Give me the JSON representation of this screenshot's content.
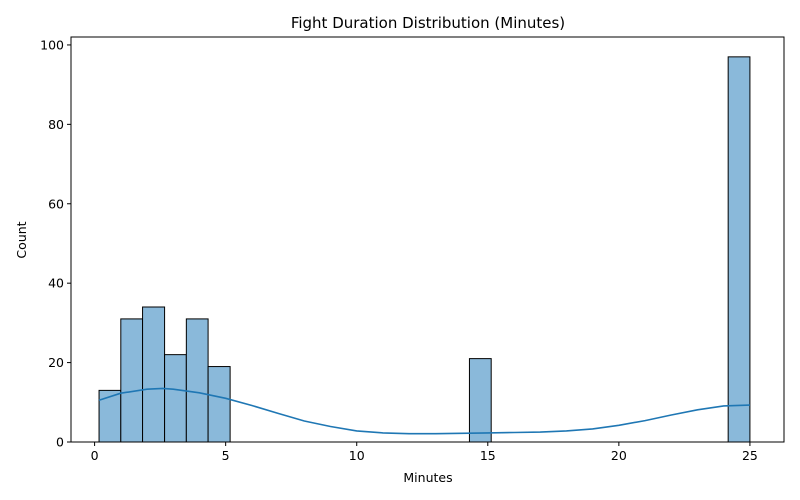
{
  "chart_data": {
    "type": "bar",
    "subtype": "histogram_with_kde",
    "title": "Fight Duration Distribution (Minutes)",
    "xlabel": "Minutes",
    "ylabel": "Count",
    "xlim": [
      -0.9,
      26.3
    ],
    "ylim": [
      0,
      102
    ],
    "xticks": [
      0,
      5,
      10,
      15,
      20,
      25
    ],
    "yticks": [
      0,
      20,
      40,
      60,
      80,
      100
    ],
    "grid": false,
    "legend": "none",
    "colors": {
      "bar_fill": "#8ab9da",
      "bar_edge": "#000000",
      "kde_line": "#1f77b4"
    },
    "bins": [
      {
        "x0": 0.17,
        "x1": 1.0,
        "count": 13
      },
      {
        "x0": 1.0,
        "x1": 1.83,
        "count": 31
      },
      {
        "x0": 1.83,
        "x1": 2.67,
        "count": 34
      },
      {
        "x0": 2.67,
        "x1": 3.5,
        "count": 22
      },
      {
        "x0": 3.5,
        "x1": 4.33,
        "count": 31
      },
      {
        "x0": 4.33,
        "x1": 5.17,
        "count": 19
      },
      {
        "x0": 14.3,
        "x1": 15.13,
        "count": 21
      },
      {
        "x0": 24.17,
        "x1": 25.0,
        "count": 97
      }
    ],
    "kde": {
      "x": [
        0.17,
        1,
        2,
        2.6,
        3,
        4,
        5,
        6,
        7,
        8,
        9,
        10,
        11,
        12,
        13,
        14,
        15,
        16,
        17,
        18,
        19,
        20,
        21,
        22,
        23,
        24,
        25
      ],
      "y": [
        10.5,
        12.3,
        13.3,
        13.5,
        13.3,
        12.4,
        11,
        9.2,
        7.2,
        5.3,
        3.9,
        2.8,
        2.3,
        2.1,
        2.1,
        2.2,
        2.3,
        2.4,
        2.5,
        2.8,
        3.3,
        4.2,
        5.4,
        6.8,
        8.1,
        9.1,
        9.3
      ]
    }
  }
}
